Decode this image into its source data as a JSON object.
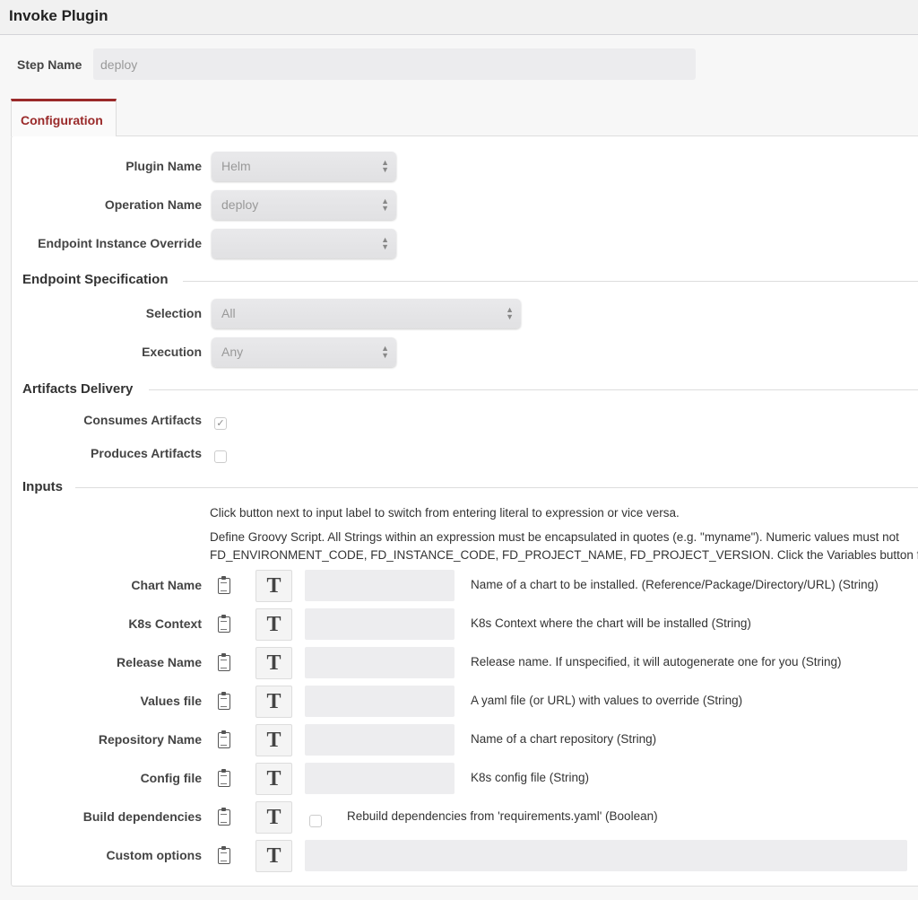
{
  "header": {
    "title": "Invoke Plugin"
  },
  "step": {
    "label": "Step Name",
    "value": "deploy"
  },
  "tabs": [
    {
      "label": "Configuration",
      "active": true
    }
  ],
  "plugin": {
    "label": "Plugin Name",
    "value": "Helm"
  },
  "operation": {
    "label": "Operation Name",
    "value": "deploy"
  },
  "endpoint_override": {
    "label": "Endpoint Instance Override",
    "value": ""
  },
  "endpoint_spec": {
    "title": "Endpoint Specification",
    "selection_label": "Selection",
    "selection_value": "All",
    "execution_label": "Execution",
    "execution_value": "Any"
  },
  "artifacts": {
    "title": "Artifacts Delivery",
    "consumes_label": "Consumes Artifacts",
    "consumes_checked": true,
    "produces_label": "Produces Artifacts",
    "produces_checked": false
  },
  "inputs": {
    "title": "Inputs",
    "help1": "Click button next to input label to switch from entering literal to expression or vice versa.",
    "help2": "Define Groovy Script. All Strings within an expression must be encapsulated in quotes (e.g. \"myname\"). Numeric values must not",
    "help3": "FD_ENVIRONMENT_CODE, FD_INSTANCE_CODE, FD_PROJECT_NAME, FD_PROJECT_VERSION. Click the Variables button for su",
    "toggle_glyph": "T",
    "rows": [
      {
        "label": "Chart Name",
        "description": "Name of a chart to be installed. (Reference/Package/Directory/URL) (String)",
        "value": ""
      },
      {
        "label": "K8s Context",
        "description": "K8s Context where the chart will be installed (String)",
        "value": ""
      },
      {
        "label": "Release Name",
        "description": "Release name. If unspecified, it will autogenerate one for you (String)",
        "value": ""
      },
      {
        "label": "Values file",
        "description": "A yaml file (or URL) with values to override (String)",
        "value": ""
      },
      {
        "label": "Repository Name",
        "description": "Name of a chart repository (String)",
        "value": ""
      },
      {
        "label": "Config file",
        "description": "K8s config file (String)",
        "value": ""
      },
      {
        "label": "Build dependencies",
        "description": "Rebuild dependencies from 'requirements.yaml' (Boolean)",
        "checked": false
      },
      {
        "label": "Custom options",
        "value": ""
      }
    ]
  }
}
